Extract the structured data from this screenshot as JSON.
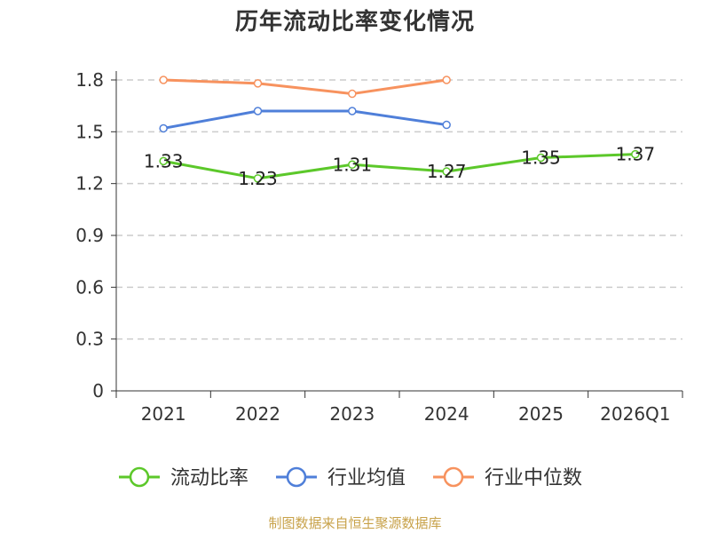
{
  "title": "历年流动比率变化情况",
  "source": "制图数据来自恒生聚源数据库",
  "chart_data": {
    "type": "line",
    "title": "历年流动比率变化情况",
    "categories": [
      "2021",
      "2022",
      "2023",
      "2024",
      "2025",
      "2026Q1"
    ],
    "ylim": [
      0,
      1.8
    ],
    "yticks": [
      "0",
      "0.3",
      "0.6",
      "0.9",
      "1.2",
      "1.5",
      "1.8"
    ],
    "ytick_values": [
      0,
      0.3,
      0.6,
      0.9,
      1.2,
      1.5,
      1.8
    ],
    "grid": true,
    "legend_position": "bottom",
    "series": [
      {
        "name": "流动比率",
        "color": "#5cc82a",
        "values": [
          1.33,
          1.23,
          1.31,
          1.27,
          1.35,
          1.37
        ],
        "labels": [
          "1.33",
          "1.23",
          "1.31",
          "1.27",
          "1.35",
          "1.37"
        ],
        "show_labels": true
      },
      {
        "name": "行业均值",
        "color": "#4f7fd9",
        "values": [
          1.52,
          1.62,
          1.62,
          1.54,
          null,
          null
        ],
        "show_labels": false
      },
      {
        "name": "行业中位数",
        "color": "#f7925e",
        "values": [
          1.8,
          1.78,
          1.72,
          1.8,
          null,
          null
        ],
        "show_labels": false
      }
    ]
  }
}
